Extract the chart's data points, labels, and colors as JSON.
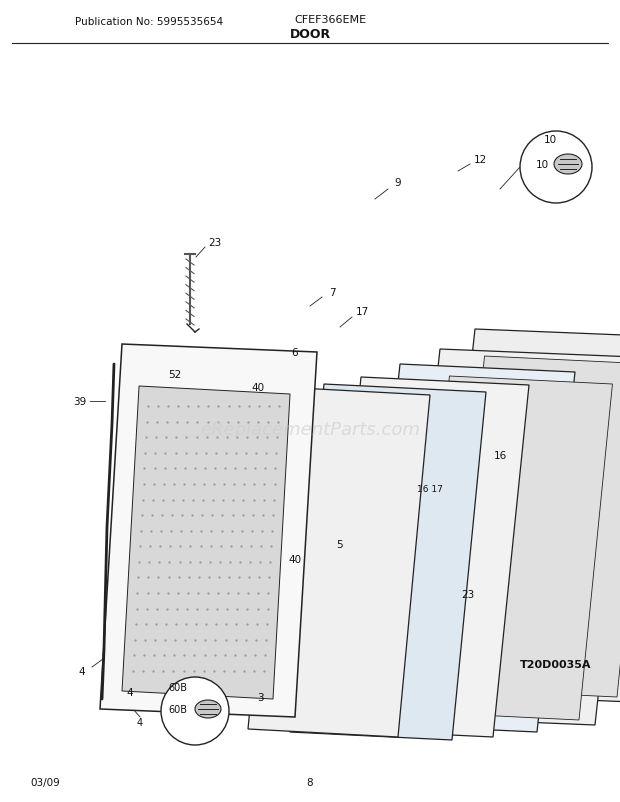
{
  "title_pub": "Publication No: 5995535654",
  "title_model": "CFEF366EME",
  "title_section": "DOOR",
  "footer_left": "03/09",
  "footer_center": "8",
  "diagram_id": "T20D0035A",
  "bg_color": "#ffffff",
  "line_color": "#222222",
  "text_color": "#111111",
  "watermark": "eReplacementParts.com"
}
